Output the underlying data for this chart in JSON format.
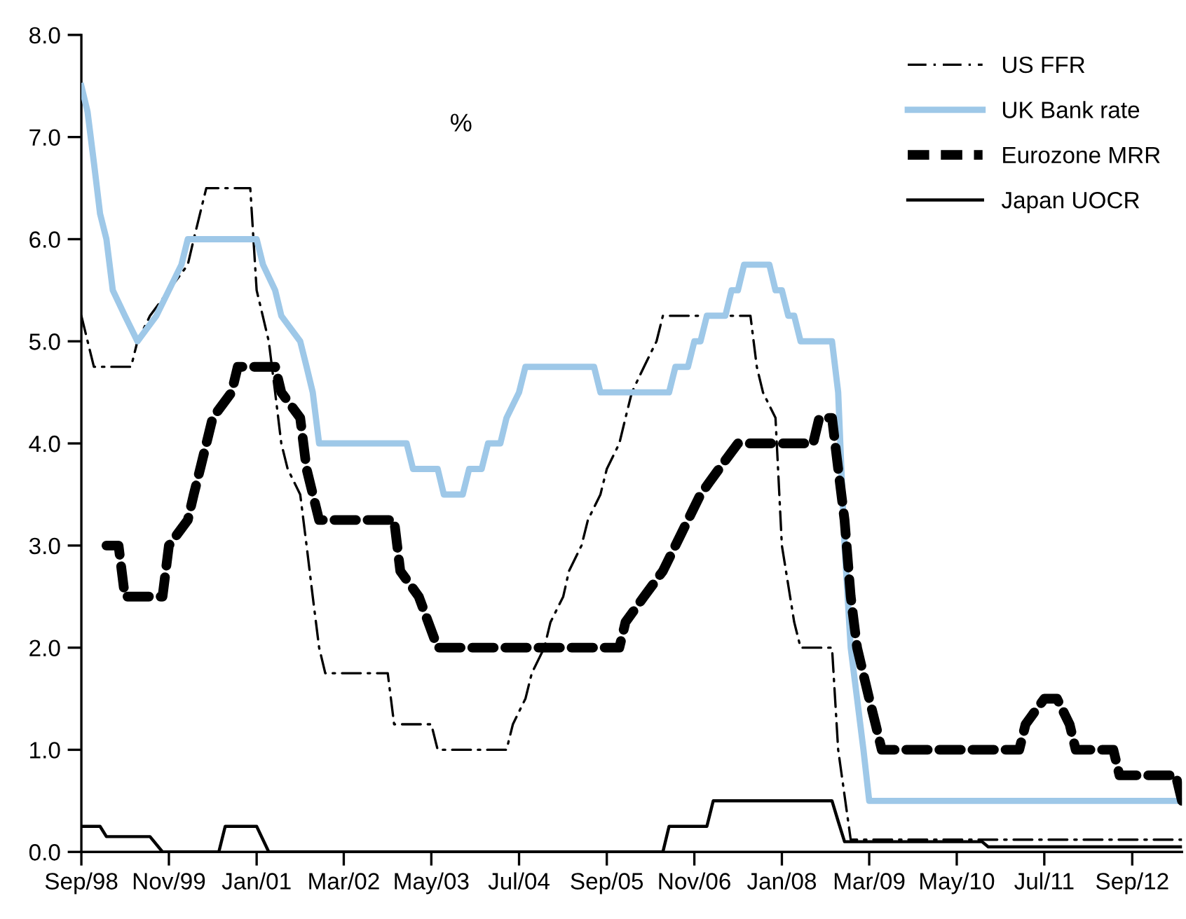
{
  "chart_data": {
    "type": "line",
    "annotations": [
      "%"
    ],
    "legend": "top right",
    "grid": false,
    "xlim": [
      "1998-09",
      "2013-05"
    ],
    "xticks": [
      {
        "value": "1998-09",
        "label": "Sep/98"
      },
      {
        "value": "1999-11",
        "label": "Nov/99"
      },
      {
        "value": "2001-01",
        "label": "Jan/01"
      },
      {
        "value": "2002-03",
        "label": "Mar/02"
      },
      {
        "value": "2003-05",
        "label": "May/03"
      },
      {
        "value": "2004-07",
        "label": "Jul/04"
      },
      {
        "value": "2005-09",
        "label": "Sep/05"
      },
      {
        "value": "2006-11",
        "label": "Nov/06"
      },
      {
        "value": "2008-01",
        "label": "Jan/08"
      },
      {
        "value": "2009-03",
        "label": "Mar/09"
      },
      {
        "value": "2010-05",
        "label": "May/10"
      },
      {
        "value": "2011-07",
        "label": "Jul/11"
      },
      {
        "value": "2012-09",
        "label": "Sep/12"
      }
    ],
    "ylim": [
      0,
      8
    ],
    "yticks": [
      {
        "value": 0,
        "label": "0.0"
      },
      {
        "value": 1,
        "label": "1.0"
      },
      {
        "value": 2,
        "label": "2.0"
      },
      {
        "value": 3,
        "label": "3.0"
      },
      {
        "value": 4,
        "label": "4.0"
      },
      {
        "value": 5,
        "label": "5.0"
      },
      {
        "value": 6,
        "label": "6.0"
      },
      {
        "value": 7,
        "label": "7.0"
      },
      {
        "value": 8,
        "label": "8.0"
      }
    ],
    "series": [
      {
        "name": "US FFR",
        "color": "#000000",
        "line_style": "dashdot",
        "x": [
          "1998-09",
          "1998-11",
          "1999-05",
          "1999-06",
          "1999-08",
          "1999-11",
          "2000-02",
          "2000-03",
          "2000-05",
          "2000-12",
          "2001-01",
          "2001-03",
          "2001-04",
          "2001-05",
          "2001-06",
          "2001-08",
          "2001-09",
          "2001-10",
          "2001-11",
          "2001-12",
          "2002-10",
          "2002-11",
          "2003-05",
          "2003-06",
          "2004-05",
          "2004-06",
          "2004-08",
          "2004-09",
          "2004-11",
          "2004-12",
          "2005-02",
          "2005-03",
          "2005-05",
          "2005-06",
          "2005-08",
          "2005-09",
          "2005-11",
          "2005-12",
          "2006-01",
          "2006-03",
          "2006-05",
          "2006-06",
          "2007-08",
          "2007-09",
          "2007-10",
          "2007-12",
          "2008-01",
          "2008-03",
          "2008-04",
          "2008-09",
          "2008-10",
          "2008-12",
          "2013-05"
        ],
        "values": [
          5.25,
          4.75,
          4.75,
          5.0,
          5.25,
          5.5,
          5.75,
          6.0,
          6.5,
          6.5,
          5.5,
          5.0,
          4.5,
          4.0,
          3.75,
          3.5,
          3.0,
          2.5,
          2.0,
          1.75,
          1.75,
          1.25,
          1.25,
          1.0,
          1.0,
          1.25,
          1.5,
          1.75,
          2.0,
          2.25,
          2.5,
          2.75,
          3.0,
          3.25,
          3.5,
          3.75,
          4.0,
          4.25,
          4.5,
          4.75,
          5.0,
          5.25,
          5.25,
          4.75,
          4.5,
          4.25,
          3.0,
          2.25,
          2.0,
          2.0,
          1.0,
          0.12,
          0.12
        ]
      },
      {
        "name": "UK Bank rate",
        "color": "#9ec8e8",
        "line_style": "solid",
        "x": [
          "1998-09",
          "1998-10",
          "1998-11",
          "1998-12",
          "1999-01",
          "1999-02",
          "1999-04",
          "1999-06",
          "1999-09",
          "1999-11",
          "2000-01",
          "2000-02",
          "2001-01",
          "2001-02",
          "2001-04",
          "2001-05",
          "2001-08",
          "2001-09",
          "2001-10",
          "2001-11",
          "2003-01",
          "2003-02",
          "2003-06",
          "2003-07",
          "2003-10",
          "2003-11",
          "2004-01",
          "2004-02",
          "2004-04",
          "2004-05",
          "2004-07",
          "2004-08",
          "2005-07",
          "2005-08",
          "2006-07",
          "2006-08",
          "2006-10",
          "2006-11",
          "2006-12",
          "2007-01",
          "2007-04",
          "2007-05",
          "2007-06",
          "2007-07",
          "2007-11",
          "2007-12",
          "2008-01",
          "2008-02",
          "2008-03",
          "2008-04",
          "2008-09",
          "2008-10",
          "2008-11",
          "2008-12",
          "2009-01",
          "2009-02",
          "2009-03",
          "2013-05"
        ],
        "values": [
          7.5,
          7.25,
          6.75,
          6.25,
          6.0,
          5.5,
          5.25,
          5.0,
          5.25,
          5.5,
          5.75,
          6.0,
          6.0,
          5.75,
          5.5,
          5.25,
          5.0,
          4.75,
          4.5,
          4.0,
          4.0,
          3.75,
          3.75,
          3.5,
          3.5,
          3.75,
          3.75,
          4.0,
          4.0,
          4.25,
          4.5,
          4.75,
          4.75,
          4.5,
          4.5,
          4.75,
          4.75,
          5.0,
          5.0,
          5.25,
          5.25,
          5.5,
          5.5,
          5.75,
          5.75,
          5.5,
          5.5,
          5.25,
          5.25,
          5.0,
          5.0,
          4.5,
          3.0,
          2.0,
          1.5,
          1.0,
          0.5,
          0.5
        ]
      },
      {
        "name": "Eurozone MRR",
        "color": "#000000",
        "line_style": "dashed",
        "x": [
          "1999-01",
          "1999-03",
          "1999-04",
          "1999-10",
          "1999-11",
          "2000-02",
          "2000-03",
          "2000-04",
          "2000-06",
          "2000-09",
          "2000-10",
          "2001-04",
          "2001-05",
          "2001-08",
          "2001-09",
          "2001-11",
          "2002-11",
          "2002-12",
          "2003-03",
          "2003-06",
          "2005-11",
          "2005-12",
          "2006-03",
          "2006-06",
          "2006-08",
          "2006-10",
          "2006-12",
          "2007-03",
          "2007-06",
          "2008-06",
          "2008-07",
          "2008-09",
          "2008-10",
          "2008-11",
          "2008-12",
          "2009-01",
          "2009-03",
          "2009-04",
          "2009-05",
          "2011-03",
          "2011-04",
          "2011-07",
          "2011-09",
          "2011-11",
          "2011-12",
          "2012-06",
          "2012-07",
          "2013-04",
          "2013-05"
        ],
        "values": [
          3.0,
          3.0,
          2.5,
          2.5,
          3.0,
          3.25,
          3.5,
          3.75,
          4.25,
          4.5,
          4.75,
          4.75,
          4.5,
          4.25,
          3.75,
          3.25,
          3.25,
          2.75,
          2.5,
          2.0,
          2.0,
          2.25,
          2.5,
          2.75,
          3.0,
          3.25,
          3.5,
          3.75,
          4.0,
          4.0,
          4.25,
          4.25,
          3.75,
          3.25,
          2.5,
          2.0,
          1.5,
          1.25,
          1.0,
          1.0,
          1.25,
          1.5,
          1.5,
          1.25,
          1.0,
          1.0,
          0.75,
          0.75,
          0.5
        ]
      },
      {
        "name": "Japan UOCR",
        "color": "#000000",
        "line_style": "solid",
        "x": [
          "1998-09",
          "1998-12",
          "1999-01",
          "1999-08",
          "1999-10",
          "2000-07",
          "2000-08",
          "2001-01",
          "2001-03",
          "2006-06",
          "2006-07",
          "2007-01",
          "2007-02",
          "2008-09",
          "2008-10",
          "2008-11",
          "2008-12",
          "2010-09",
          "2010-10",
          "2013-05"
        ],
        "values": [
          0.25,
          0.25,
          0.15,
          0.15,
          0.0,
          0.0,
          0.25,
          0.25,
          0.0,
          0.0,
          0.25,
          0.25,
          0.5,
          0.5,
          0.3,
          0.1,
          0.1,
          0.1,
          0.05,
          0.05
        ]
      }
    ]
  }
}
